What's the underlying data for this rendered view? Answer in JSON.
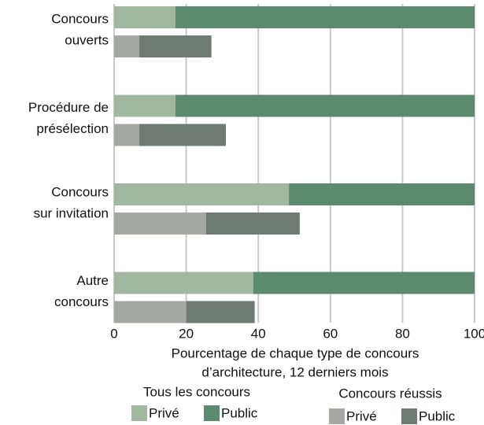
{
  "chart_data": {
    "type": "stacked-bar-horizontal",
    "categories": [
      [
        "Concours",
        "ouverts"
      ],
      [
        "Procédure de",
        "présélection"
      ],
      [
        "Concours",
        "sur invitation"
      ],
      [
        "Autre",
        "concours"
      ]
    ],
    "groups": [
      {
        "name": "Tous les concours",
        "series": [
          {
            "name": "Privé",
            "color": "#9fb89f",
            "values": [
              17,
              17,
              48.5,
              38.6
            ]
          },
          {
            "name": "Public",
            "color": "#5b8a6e",
            "values": [
              83,
              83,
              51.5,
              61.4
            ]
          }
        ]
      },
      {
        "name": "Concours réussis",
        "series": [
          {
            "name": "Privé",
            "color": "#a5a8a5",
            "values": [
              7,
              7,
              25.5,
              20
            ]
          },
          {
            "name": "Public",
            "color": "#6e7a72",
            "values": [
              20,
              24,
              26,
              19
            ]
          }
        ]
      }
    ],
    "xlabel": [
      "Pourcentage de chaque type de concours",
      "d’architecture, 12 derniers mois"
    ],
    "xlim": [
      0,
      100
    ],
    "xticks": [
      0,
      20,
      40,
      60,
      80,
      100
    ],
    "grid": true
  }
}
